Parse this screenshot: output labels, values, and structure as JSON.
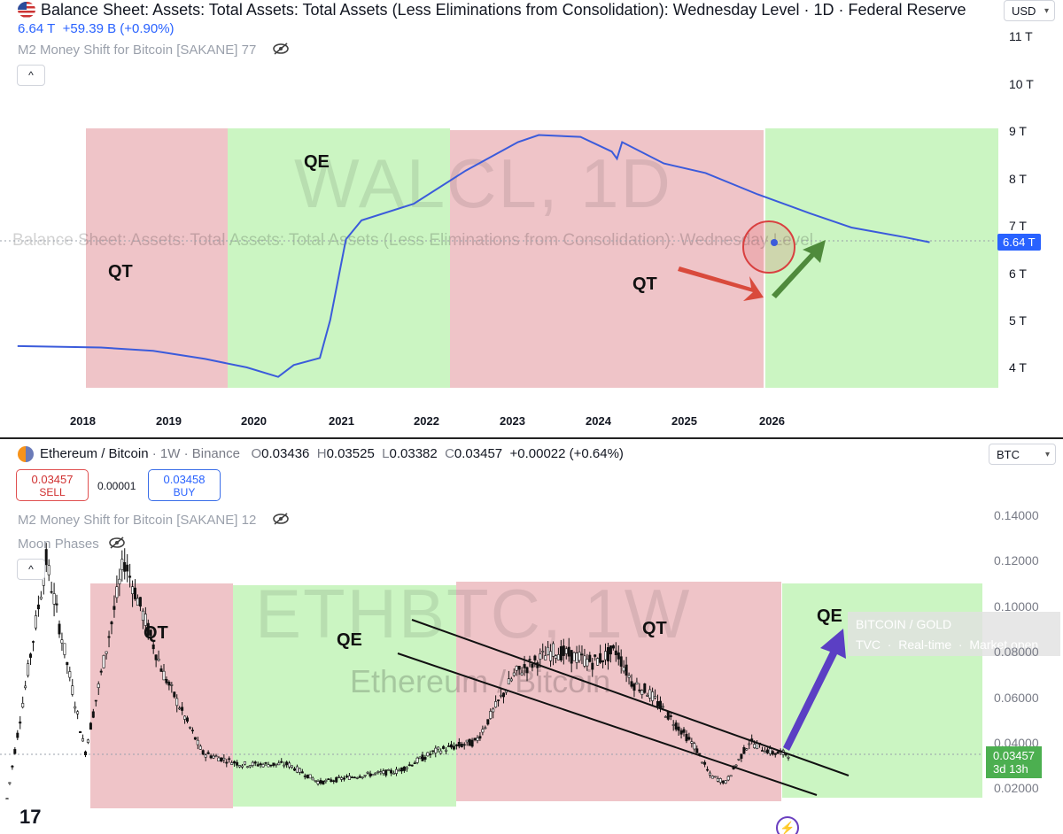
{
  "top": {
    "title": "Balance Sheet: Assets: Total Assets: Total Assets (Less Eliminations from Consolidation): Wednesday Level · 1D · Federal Reserve",
    "value_line": "6.64 T",
    "change_line": "+59.39 B (+0.90%)",
    "indicator": "M2 Money Shift for Bitcoin [SAKANE] 77",
    "currency": "USD",
    "collapse_glyph": "^",
    "watermark": "WALCL, 1D",
    "watermark_sub": "Balance Sheet: Assets: Total Assets: Total Assets (Less Eliminations from Consolidation): Wednesday Level",
    "y_labels": [
      "11 T",
      "10 T",
      "9 T",
      "8 T",
      "7 T",
      "6 T",
      "5 T",
      "4 T"
    ],
    "x_labels": [
      "2018",
      "2019",
      "2020",
      "2021",
      "2022",
      "2023",
      "2024",
      "2025",
      "2026"
    ],
    "price_tag": "6.64 T",
    "zones": [
      "QT",
      "QE",
      "QT",
      ""
    ],
    "colors": {
      "line": "#3b5bdb",
      "red_zone": "#efc4c8",
      "green_zone": "#cbf5c2"
    }
  },
  "bottom": {
    "symbol": "Ethereum / Bitcoin",
    "interval": "1W",
    "exchange": "Binance",
    "ohlc": {
      "o": "0.03436",
      "h": "0.03525",
      "l": "0.03382",
      "c": "0.03457",
      "chg": "+0.00022 (+0.64%)"
    },
    "sell_price": "0.03457",
    "sell_label": "SELL",
    "spread": "0.00001",
    "buy_price": "0.03458",
    "buy_label": "BUY",
    "indicator1": "M2 Money Shift for Bitcoin [SAKANE] 12",
    "indicator2": "Moon Phases",
    "currency": "BTC",
    "collapse_glyph": "^",
    "watermark": "ETHBTC, 1W",
    "watermark_sub": "Ethereum / Bitcoin",
    "y_labels": [
      "0.14000",
      "0.12000",
      "0.10000",
      "0.08000",
      "0.06000",
      "0.04000",
      "0.02000"
    ],
    "zones": [
      "QT",
      "QE",
      "QT",
      "QE"
    ],
    "last_price": "0.03457",
    "countdown": "3d 13h",
    "compare_card": {
      "title": "BITCOIN / GOLD",
      "src": "TVC",
      "rt": "Real-time",
      "extra": "Market open"
    },
    "logo": "17",
    "colors": {
      "red_zone": "#efc4c8",
      "green_zone": "#cbf5c2",
      "arrow": "#5b3fc4"
    }
  },
  "chart_data": [
    {
      "type": "line",
      "title": "Balance Sheet: Assets: Total Assets: Total Assets (Less Eliminations from Consolidation): Wednesday Level · 1D · Federal Reserve",
      "xlabel": "",
      "ylabel": "",
      "unit": "T",
      "x": [
        2017.2,
        2018.0,
        2018.5,
        2019.0,
        2019.4,
        2019.7,
        2019.85,
        2020.1,
        2020.2,
        2020.35,
        2020.5,
        2021.0,
        2021.5,
        2022.0,
        2022.2,
        2022.6,
        2022.9,
        2022.95,
        2023.0,
        2023.4,
        2023.8,
        2024.3,
        2024.8,
        2025.2,
        2025.7,
        2025.95
      ],
      "y": [
        4.45,
        4.42,
        4.35,
        4.18,
        4.0,
        3.8,
        4.05,
        4.2,
        5.0,
        6.7,
        7.1,
        7.45,
        8.15,
        8.75,
        8.9,
        8.86,
        8.55,
        8.4,
        8.75,
        8.3,
        8.1,
        7.65,
        7.25,
        6.95,
        6.75,
        6.64
      ],
      "ylim": [
        3.4,
        11.3
      ],
      "xlim": [
        2017.1,
        2026.6
      ],
      "regions": [
        {
          "from": 2018.05,
          "to": 2019.65,
          "label": "QT"
        },
        {
          "from": 2019.65,
          "to": 2022.25,
          "label": "QE"
        },
        {
          "from": 2022.25,
          "to": 2025.93,
          "label": "QT"
        },
        {
          "from": 2025.93,
          "to": 2026.6,
          "label": ""
        }
      ]
    },
    {
      "type": "line",
      "title": "Ethereum / Bitcoin · 1W · Binance",
      "xlabel": "",
      "ylabel": "",
      "x": [
        0,
        5,
        10,
        15,
        20,
        25,
        30,
        36,
        40,
        45,
        50,
        55,
        60,
        65,
        70,
        75,
        78,
        80,
        82,
        85,
        88,
        90,
        92,
        95,
        98,
        100
      ],
      "y": [
        0.015,
        0.12,
        0.035,
        0.12,
        0.07,
        0.035,
        0.03,
        0.03,
        0.022,
        0.025,
        0.027,
        0.036,
        0.04,
        0.07,
        0.08,
        0.075,
        0.08,
        0.066,
        0.062,
        0.05,
        0.038,
        0.025,
        0.022,
        0.04,
        0.035,
        0.0346
      ],
      "ylim": [
        0.01,
        0.15
      ],
      "regions": [
        {
          "from": 8.5,
          "to": 22,
          "label": "QT"
        },
        {
          "from": 22,
          "to": 43,
          "label": "QE"
        },
        {
          "from": 43,
          "to": 74,
          "label": "QT"
        },
        {
          "from": 74,
          "to": 93,
          "label": "QE"
        }
      ]
    }
  ]
}
